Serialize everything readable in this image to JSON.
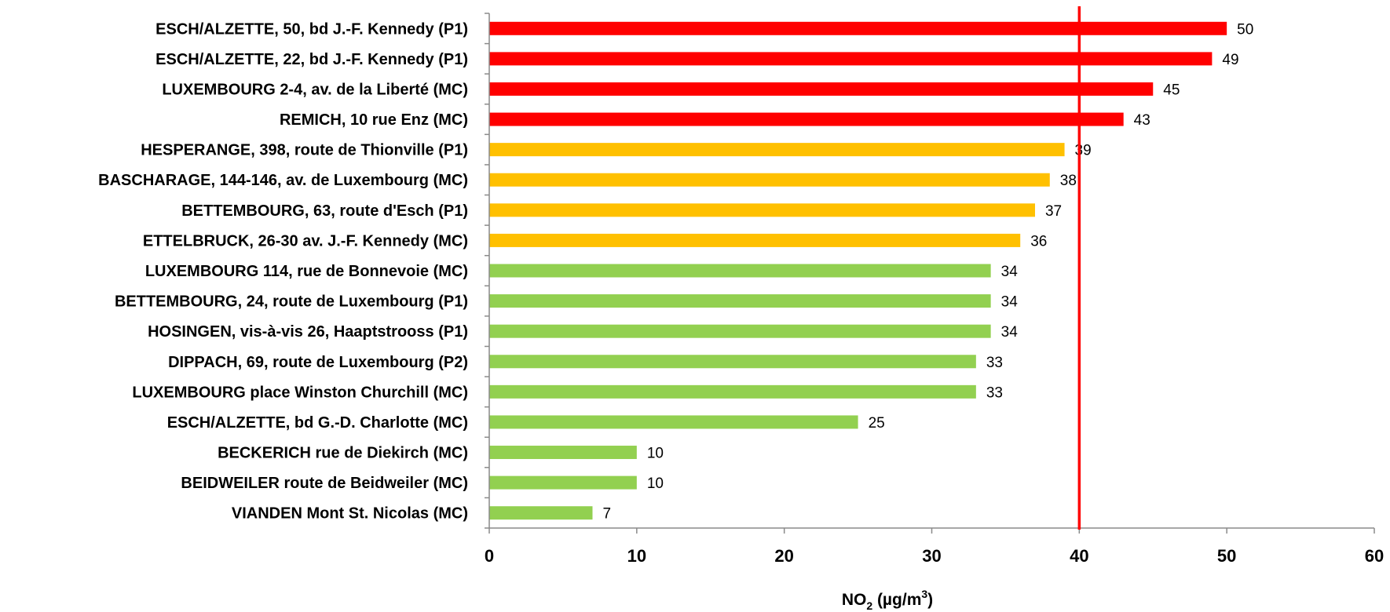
{
  "chart_data": {
    "type": "bar",
    "orientation": "horizontal",
    "categories": [
      "ESCH/ALZETTE, 50, bd J.-F. Kennedy (P1)",
      "ESCH/ALZETTE, 22, bd J.-F. Kennedy (P1)",
      "LUXEMBOURG 2-4, av. de la Liberté (MC)",
      "REMICH, 10 rue Enz (MC)",
      "HESPERANGE, 398, route de Thionville (P1)",
      "BASCHARAGE, 144-146, av. de Luxembourg (MC)",
      "BETTEMBOURG, 63, route d'Esch (P1)",
      "ETTELBRUCK, 26-30 av. J.-F. Kennedy (MC)",
      "LUXEMBOURG 114, rue de Bonnevoie (MC)",
      "BETTEMBOURG, 24, route de Luxembourg (P1)",
      "HOSINGEN, vis-à-vis 26, Haaptstrooss (P1)",
      "DIPPACH, 69, route de Luxembourg (P2)",
      "LUXEMBOURG place Winston Churchill (MC)",
      "ESCH/ALZETTE, bd G.-D. Charlotte (MC)",
      "BECKERICH rue de Diekirch (MC)",
      "BEIDWEILER route de Beidweiler (MC)",
      "VIANDEN Mont St. Nicolas (MC)"
    ],
    "values": [
      50,
      49,
      45,
      43,
      39,
      38,
      37,
      36,
      34,
      34,
      34,
      33,
      33,
      25,
      10,
      10,
      7
    ],
    "bar_colors": [
      "#ff0000",
      "#ff0000",
      "#ff0000",
      "#ff0000",
      "#ffc000",
      "#ffc000",
      "#ffc000",
      "#ffc000",
      "#92d050",
      "#92d050",
      "#92d050",
      "#92d050",
      "#92d050",
      "#92d050",
      "#92d050",
      "#92d050",
      "#92d050"
    ],
    "reference_line": {
      "value": 40,
      "color": "#ff0000"
    },
    "xlim": [
      0,
      60
    ],
    "xticks": [
      0,
      10,
      20,
      30,
      40,
      50,
      60
    ],
    "xlabel": {
      "main": "NO",
      "subscript": "2",
      "unit_prefix": " (µg/m",
      "superscript": "3",
      "unit_suffix": ")"
    },
    "grid": false,
    "legend": "none"
  }
}
